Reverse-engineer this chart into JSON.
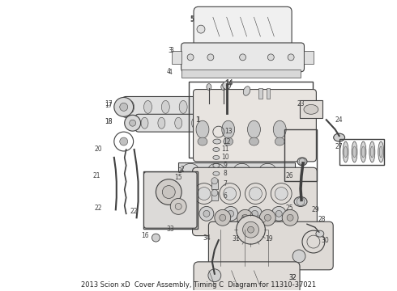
{
  "title": "2013 Scion xD",
  "subtitle": "Cover Assembly, Timing C",
  "part_number": "Diagram for 11310-37021",
  "bg": "#ffffff",
  "lc": "#404040",
  "fig_width": 4.9,
  "fig_height": 3.6,
  "dpi": 100,
  "label_fontsize": 5.5,
  "caption_fontsize": 6.0
}
